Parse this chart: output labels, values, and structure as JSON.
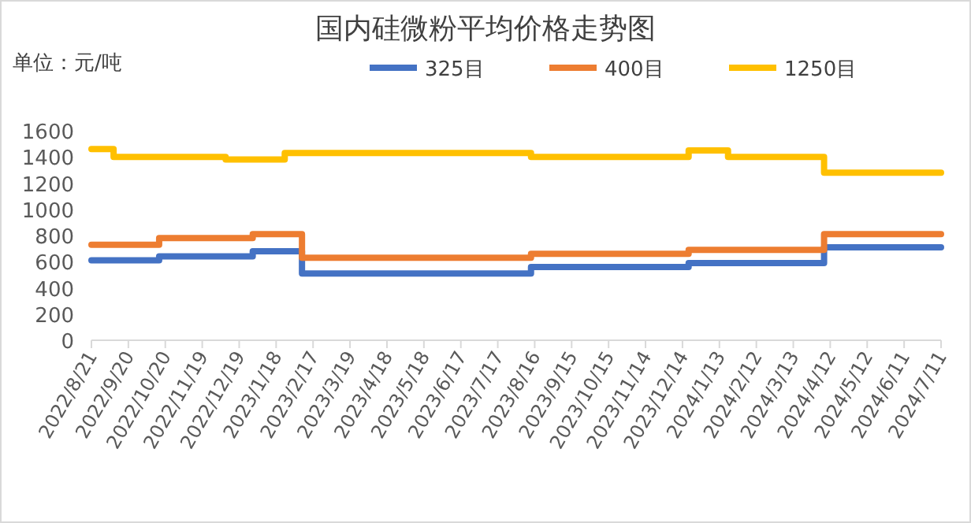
{
  "chart_data": {
    "type": "step",
    "title": "国内硅微粉平均价格走势图",
    "annotations": [
      "单位：元/吨"
    ],
    "legend": "top",
    "xlim": [
      "2022-08-21",
      "2024-07-11"
    ],
    "xticks": [
      {
        "value": "2022-08-21",
        "label": "2022/8/21"
      },
      {
        "value": "2022-09-20",
        "label": "2022/9/20"
      },
      {
        "value": "2022-10-20",
        "label": "2022/10/20"
      },
      {
        "value": "2022-11-19",
        "label": "2022/11/19"
      },
      {
        "value": "2022-12-19",
        "label": "2022/12/19"
      },
      {
        "value": "2023-01-18",
        "label": "2023/1/18"
      },
      {
        "value": "2023-02-17",
        "label": "2023/2/17"
      },
      {
        "value": "2023-03-19",
        "label": "2023/3/19"
      },
      {
        "value": "2023-04-18",
        "label": "2023/4/18"
      },
      {
        "value": "2023-05-18",
        "label": "2023/5/18"
      },
      {
        "value": "2023-06-17",
        "label": "2023/6/17"
      },
      {
        "value": "2023-07-17",
        "label": "2023/7/17"
      },
      {
        "value": "2023-08-16",
        "label": "2023/8/16"
      },
      {
        "value": "2023-09-15",
        "label": "2023/9/15"
      },
      {
        "value": "2023-10-15",
        "label": "2023/10/15"
      },
      {
        "value": "2023-11-14",
        "label": "2023/11/14"
      },
      {
        "value": "2023-12-14",
        "label": "2023/12/14"
      },
      {
        "value": "2024-01-13",
        "label": "2024/1/13"
      },
      {
        "value": "2024-02-12",
        "label": "2024/2/12"
      },
      {
        "value": "2024-03-13",
        "label": "2024/3/13"
      },
      {
        "value": "2024-04-12",
        "label": "2024/4/12"
      },
      {
        "value": "2024-05-12",
        "label": "2024/5/12"
      },
      {
        "value": "2024-06-11",
        "label": "2024/6/11"
      },
      {
        "value": "2024-07-11",
        "label": "2024/7/11"
      }
    ],
    "ylim": [
      0,
      1600
    ],
    "yticks": [
      0,
      200,
      400,
      600,
      800,
      1000,
      1200,
      1400,
      1600
    ],
    "series": [
      {
        "name": "325目",
        "color": "#4472c4",
        "x": [
          "2022-08-21",
          "2022-10-15",
          "2022-12-30",
          "2023-02-08",
          "2023-08-13",
          "2023-12-19",
          "2024-04-07",
          "2024-07-11"
        ],
        "values": [
          610,
          640,
          680,
          510,
          560,
          590,
          710,
          710
        ]
      },
      {
        "name": "400目",
        "color": "#ed7d31",
        "x": [
          "2022-08-21",
          "2022-10-15",
          "2022-12-30",
          "2023-02-08",
          "2023-08-13",
          "2023-12-19",
          "2024-04-07",
          "2024-07-11"
        ],
        "values": [
          730,
          780,
          810,
          630,
          660,
          690,
          810,
          810
        ]
      },
      {
        "name": "1250目",
        "color": "#ffc000",
        "x": [
          "2022-08-21",
          "2022-09-08",
          "2022-12-08",
          "2023-01-25",
          "2023-08-13",
          "2023-12-19",
          "2024-01-20",
          "2024-04-07",
          "2024-07-11"
        ],
        "values": [
          1460,
          1400,
          1380,
          1430,
          1400,
          1450,
          1400,
          1280,
          1280
        ]
      }
    ]
  }
}
